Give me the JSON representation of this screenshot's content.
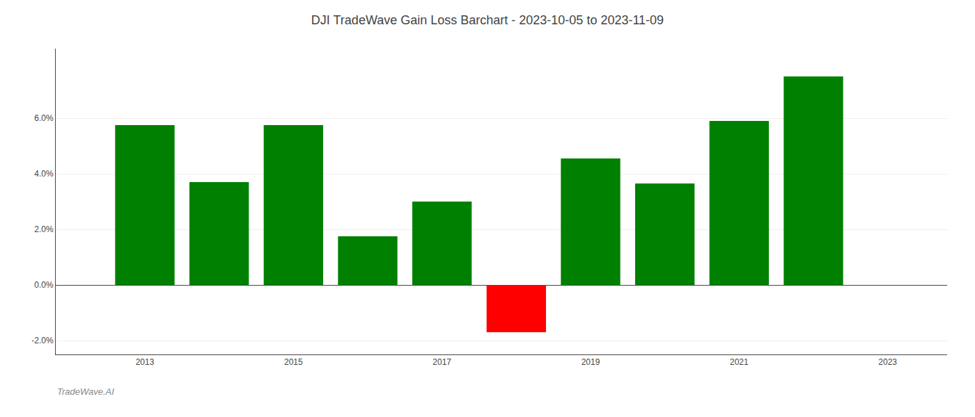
{
  "chart_data": {
    "type": "bar",
    "title": "DJI TradeWave Gain Loss Barchart - 2023-10-05 to 2023-11-09",
    "x": [
      2013,
      2014,
      2015,
      2016,
      2017,
      2018,
      2019,
      2020,
      2021,
      2022
    ],
    "values": [
      5.75,
      3.7,
      5.75,
      1.75,
      3.0,
      -1.7,
      4.55,
      3.65,
      5.9,
      7.5
    ],
    "colors": [
      "#008000",
      "#008000",
      "#008000",
      "#008000",
      "#008000",
      "#ff0000",
      "#008000",
      "#008000",
      "#008000",
      "#008000"
    ],
    "xlim": [
      2011.8,
      2023.8
    ],
    "xticks": [
      2013,
      2015,
      2017,
      2019,
      2021,
      2023
    ],
    "ylim": [
      -2.5,
      8.5
    ],
    "yticks": [
      {
        "value": -2.0,
        "label": "-2.0%"
      },
      {
        "value": 0.0,
        "label": "0.0%"
      },
      {
        "value": 2.0,
        "label": "2.0%"
      },
      {
        "value": 4.0,
        "label": "4.0%"
      },
      {
        "value": 6.0,
        "label": "6.0%"
      }
    ],
    "grid": "y",
    "annotations": [
      {
        "text": "TradeWave.AI"
      }
    ]
  }
}
